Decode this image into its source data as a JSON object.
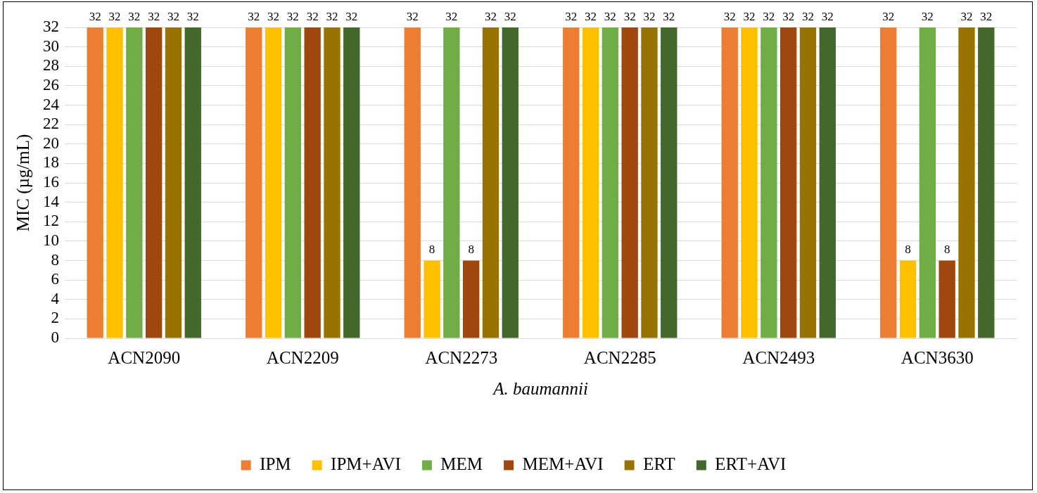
{
  "chart_data": {
    "type": "bar",
    "xlabel": "A. baumannii",
    "ylabel": "MIC (µg/mL)",
    "categories": [
      "ACN2090",
      "ACN2209",
      "ACN2273",
      "ACN2285",
      "ACN2493",
      "ACN3630"
    ],
    "series": [
      {
        "name": "IPM",
        "color": "#ed7d31",
        "values": [
          32,
          32,
          32,
          32,
          32,
          32
        ]
      },
      {
        "name": "IPM+AVI",
        "color": "#ffc000",
        "values": [
          32,
          32,
          8,
          32,
          32,
          8
        ]
      },
      {
        "name": "MEM",
        "color": "#70ad47",
        "values": [
          32,
          32,
          32,
          32,
          32,
          32
        ]
      },
      {
        "name": "MEM+AVI",
        "color": "#9e480e",
        "values": [
          32,
          32,
          8,
          32,
          32,
          8
        ]
      },
      {
        "name": "ERT",
        "color": "#997300",
        "values": [
          32,
          32,
          32,
          32,
          32,
          32
        ]
      },
      {
        "name": "ERT+AVI",
        "color": "#43682b",
        "values": [
          32,
          32,
          32,
          32,
          32,
          32
        ]
      }
    ],
    "ylim": [
      0,
      32
    ],
    "yticks": [
      0,
      2,
      4,
      6,
      8,
      10,
      12,
      14,
      16,
      18,
      20,
      22,
      24,
      26,
      28,
      30,
      32
    ],
    "grid": "y",
    "legend": "bottom",
    "data_labels": true
  }
}
